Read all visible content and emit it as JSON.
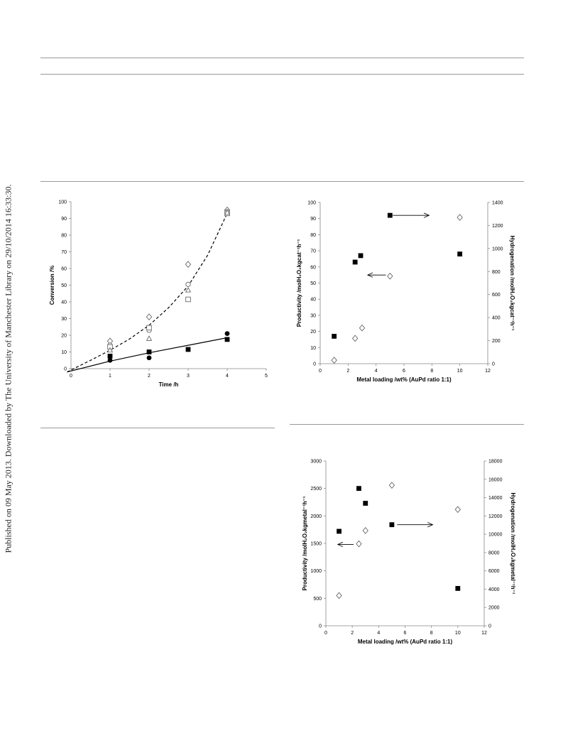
{
  "sidebar_note": "Published on 09 May 2013. Downloaded by The University of Manchester Library on 29/10/2014 16:33:30.",
  "chart_data": [
    {
      "type": "scatter",
      "xlabel": "Time /h",
      "ylabel": "Conversion /%",
      "xlim": [
        0,
        5
      ],
      "ylim": [
        0,
        100
      ],
      "xticks": [
        "0",
        "1",
        "2",
        "3",
        "4",
        "5"
      ],
      "yticks": [
        "0",
        "10",
        "20",
        "30",
        "40",
        "50",
        "60",
        "70",
        "80",
        "90",
        "100"
      ],
      "series": [
        {
          "marker": "diamond-open",
          "x": [
            1,
            2,
            3,
            4
          ],
          "y": [
            16.5,
            31,
            62.5,
            95
          ]
        },
        {
          "marker": "circle-open",
          "x": [
            1,
            2,
            3,
            4
          ],
          "y": [
            14,
            23,
            50.5,
            94
          ]
        },
        {
          "marker": "square-open",
          "x": [
            1,
            2,
            3,
            4
          ],
          "y": [
            13,
            24.5,
            41.5,
            93
          ]
        },
        {
          "marker": "triangle-open",
          "x": [
            1,
            2,
            3,
            4
          ],
          "y": [
            11,
            18,
            47,
            93.5
          ]
        },
        {
          "marker": "square-filled",
          "x": [
            1,
            2,
            3,
            4
          ],
          "y": [
            7.5,
            10,
            11.5,
            17.5
          ]
        },
        {
          "marker": "circle-filled",
          "x": [
            1,
            2,
            4
          ],
          "y": [
            5,
            6.5,
            21
          ]
        }
      ],
      "fits": [
        {
          "style": "dashed",
          "x": [
            -0.1,
            0.5,
            1,
            1.5,
            2,
            2.5,
            3,
            3.5,
            4
          ],
          "y": [
            -2,
            5,
            11,
            17.8,
            26,
            36.5,
            49.5,
            68,
            93
          ]
        },
        {
          "style": "solid",
          "x": [
            -0.1,
            1,
            2,
            3,
            4
          ],
          "y": [
            -2,
            4.5,
            9.5,
            14,
            18.5
          ]
        }
      ]
    },
    {
      "type": "scatter",
      "xlabel": "Metal loading /wt% (AuPd ratio 1:1)",
      "ylabel": "Productivity /molH₂O₂kgcat⁻¹h⁻¹",
      "y2label": "Hydrogenation /molH₂O₂kgcat⁻¹h⁻¹",
      "xlim": [
        0,
        12
      ],
      "ylim": [
        0,
        100
      ],
      "y2lim": [
        0,
        1400
      ],
      "xticks": [
        "0",
        "2",
        "4",
        "6",
        "8",
        "10",
        "12"
      ],
      "yticks": [
        "0",
        "10",
        "20",
        "30",
        "40",
        "50",
        "60",
        "70",
        "80",
        "90",
        "100"
      ],
      "y2ticks": [
        "0",
        "200",
        "400",
        "600",
        "800",
        "1000",
        "1200",
        "1400"
      ],
      "series": [
        {
          "marker": "square-filled",
          "axis": "left",
          "x": [
            1,
            2.5,
            2.9,
            5,
            10
          ],
          "y": [
            17,
            63,
            67,
            92,
            68
          ]
        },
        {
          "marker": "diamond-open",
          "axis": "right",
          "x": [
            1,
            2.5,
            3,
            5,
            10
          ],
          "y": [
            30,
            220,
            310,
            760,
            1270
          ]
        }
      ],
      "arrows": [
        {
          "x1": 5.2,
          "x2": 7.8,
          "y": 92,
          "axis": "left"
        },
        {
          "x1": 4.7,
          "x2": 3.4,
          "y": 55,
          "axis": "left"
        }
      ]
    },
    {
      "type": "scatter",
      "xlabel": "Metal loading /wt% (AuPd ratio 1:1)",
      "ylabel": "Productivity /molH₂O₂kgmetal⁻¹h⁻¹",
      "y2label": "Hydrogenation /molH₂O₂kgmetal⁻¹h⁻¹",
      "xlim": [
        0,
        12
      ],
      "ylim": [
        0,
        3000
      ],
      "y2lim": [
        0,
        18000
      ],
      "xticks": [
        "0",
        "2",
        "4",
        "6",
        "8",
        "10",
        "12"
      ],
      "yticks": [
        "0",
        "500",
        "1000",
        "1500",
        "2000",
        "2500",
        "3000"
      ],
      "y2ticks": [
        "0",
        "2000",
        "4000",
        "6000",
        "8000",
        "10000",
        "12000",
        "14000",
        "16000",
        "18000"
      ],
      "series": [
        {
          "marker": "square-filled",
          "axis": "left",
          "x": [
            1,
            2.5,
            3,
            5,
            10
          ],
          "y": [
            1720,
            2500,
            2230,
            1840,
            680
          ]
        },
        {
          "marker": "diamond-open",
          "axis": "right",
          "x": [
            1,
            2.5,
            3,
            5,
            10
          ],
          "y": [
            3300,
            8950,
            10400,
            15350,
            12700
          ]
        }
      ],
      "arrows": [
        {
          "x1": 5.4,
          "x2": 8.1,
          "y": 1840,
          "axis": "left"
        },
        {
          "x1": 2.1,
          "x2": 0.9,
          "y": 1480,
          "axis": "left"
        }
      ]
    }
  ]
}
